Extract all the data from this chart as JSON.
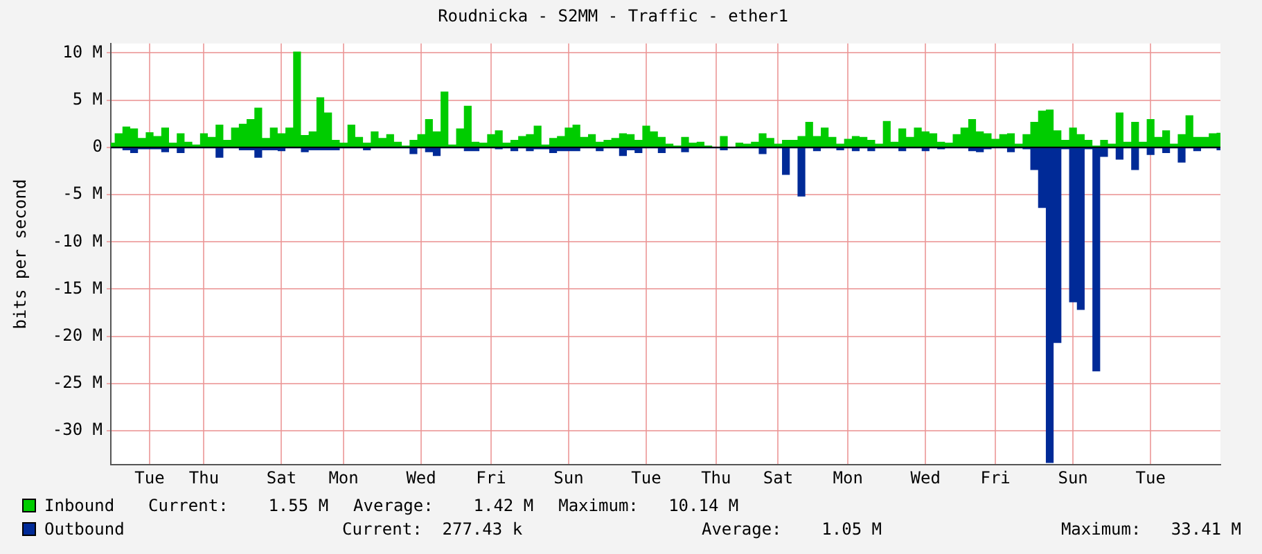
{
  "chart_data": {
    "type": "area",
    "title": "Roudnicka - S2MM - Traffic - ether1",
    "ylabel": "bits per second",
    "categories": [
      null,
      null,
      null,
      null,
      null,
      "Tue",
      null,
      null,
      null,
      null,
      null,
      null,
      "Thu",
      null,
      null,
      null,
      null,
      null,
      null,
      null,
      null,
      null,
      "Sat",
      null,
      null,
      null,
      null,
      null,
      null,
      null,
      "Mon",
      null,
      null,
      null,
      null,
      null,
      null,
      null,
      null,
      null,
      "Wed",
      null,
      null,
      null,
      null,
      null,
      null,
      null,
      null,
      "Fri",
      null,
      null,
      null,
      null,
      null,
      null,
      null,
      null,
      null,
      "Sun",
      null,
      null,
      null,
      null,
      null,
      null,
      null,
      null,
      null,
      "Tue",
      null,
      null,
      null,
      null,
      null,
      null,
      null,
      null,
      "Thu",
      null,
      null,
      null,
      null,
      null,
      null,
      null,
      "Sat",
      null,
      null,
      null,
      null,
      null,
      null,
      null,
      null,
      "Mon",
      null,
      null,
      null,
      null,
      null,
      null,
      null,
      null,
      null,
      "Wed",
      null,
      null,
      null,
      null,
      null,
      null,
      null,
      null,
      "Fri",
      null,
      null,
      null,
      null,
      null,
      null,
      null,
      null,
      null,
      "Sun",
      null,
      null,
      null,
      null,
      null,
      null,
      null,
      null,
      null,
      "Tue",
      null,
      null,
      null,
      null,
      null,
      null,
      null,
      null,
      null
    ],
    "series": [
      {
        "name": "Inbound",
        "color": "#00cc00",
        "values": [
          0.5,
          1.5,
          2.2,
          2.0,
          1.0,
          1.6,
          1.2,
          2.1,
          0.5,
          1.5,
          0.6,
          0.3,
          1.5,
          1.1,
          2.4,
          0.8,
          2.1,
          2.5,
          3.0,
          4.2,
          1.0,
          2.1,
          1.5,
          2.1,
          10.14,
          1.3,
          1.7,
          5.3,
          3.7,
          0.8,
          0.5,
          2.4,
          1.1,
          0.5,
          1.7,
          1.0,
          1.4,
          0.6,
          0.2,
          0.8,
          1.4,
          3.0,
          1.7,
          5.9,
          0.3,
          2.0,
          4.4,
          0.6,
          0.5,
          1.4,
          1.8,
          0.5,
          0.8,
          1.2,
          1.4,
          2.3,
          0.3,
          1.0,
          1.2,
          2.1,
          2.4,
          1.1,
          1.4,
          0.6,
          0.8,
          1.0,
          1.5,
          1.4,
          0.8,
          2.3,
          1.7,
          1.1,
          0.4,
          0.2,
          1.1,
          0.5,
          0.6,
          0.2,
          0,
          1.2,
          0,
          0.5,
          0.4,
          0.6,
          1.5,
          1.0,
          0.4,
          0.8,
          0.8,
          1.2,
          2.7,
          1.2,
          2.1,
          1.1,
          0.4,
          0.9,
          1.2,
          1.1,
          0.8,
          0.4,
          2.8,
          0.6,
          2.0,
          1.1,
          2.1,
          1.7,
          1.5,
          0.6,
          0.5,
          1.4,
          2.1,
          3.0,
          1.7,
          1.5,
          0.9,
          1.4,
          1.5,
          0.4,
          1.4,
          2.7,
          3.9,
          4.0,
          1.8,
          0.8,
          2.1,
          1.4,
          0.8,
          0.2,
          0.8,
          0.4,
          3.7,
          0.6,
          2.7,
          0.6,
          3.0,
          1.1,
          1.8,
          0.4,
          1.4,
          3.4,
          1.1,
          1.1,
          1.5,
          1.55
        ]
      },
      {
        "name": "Outbound",
        "color": "#002a97",
        "values": [
          -0.1,
          -0.1,
          -0.3,
          -0.6,
          -0.2,
          -0.2,
          -0.2,
          -0.5,
          -0.1,
          -0.6,
          -0.1,
          -0.1,
          -0.1,
          -0.1,
          -1.1,
          -0.1,
          -0.1,
          -0.3,
          -0.3,
          -1.1,
          -0.3,
          -0.3,
          -0.4,
          -0.1,
          -0.1,
          -0.5,
          -0.3,
          -0.3,
          -0.3,
          -0.3,
          -0.1,
          -0.1,
          -0.1,
          -0.3,
          -0.1,
          -0.1,
          -0.1,
          -0.1,
          -0.1,
          -0.7,
          -0.1,
          -0.5,
          -0.9,
          -0.1,
          -0.1,
          -0.1,
          -0.4,
          -0.4,
          -0.1,
          -0.1,
          -0.2,
          -0.1,
          -0.4,
          -0.1,
          -0.4,
          -0.2,
          -0.2,
          -0.6,
          -0.4,
          -0.4,
          -0.4,
          -0.1,
          -0.1,
          -0.4,
          -0.1,
          -0.1,
          -0.9,
          -0.3,
          -0.6,
          -0.1,
          -0.1,
          -0.6,
          -0.1,
          -0.1,
          -0.5,
          -0.1,
          -0.1,
          -0.1,
          -0.1,
          -0.3,
          -0.1,
          -0.1,
          -0.1,
          -0.1,
          -0.7,
          -0.1,
          -0.1,
          -2.9,
          -0.1,
          -5.2,
          -0.1,
          -0.4,
          -0.1,
          -0.1,
          -0.3,
          -0.1,
          -0.4,
          -0.1,
          -0.4,
          -0.1,
          -0.1,
          -0.1,
          -0.4,
          -0.1,
          -0.1,
          -0.4,
          -0.1,
          -0.2,
          -0.1,
          -0.1,
          -0.1,
          -0.4,
          -0.5,
          -0.2,
          -0.1,
          -0.1,
          -0.5,
          -0.1,
          -0.2,
          -2.4,
          -6.4,
          -33.41,
          -20.7,
          -0.2,
          -16.4,
          -17.2,
          -0.2,
          -23.7,
          -1.0,
          -0.1,
          -1.3,
          -0.1,
          -2.4,
          -0.1,
          -0.8,
          -0.1,
          -0.6,
          -0.1,
          -1.6,
          -0.1,
          -0.4,
          -0.1,
          -0.1,
          -0.3
        ]
      }
    ],
    "ylim": [
      -33.6,
      11
    ],
    "yticks": [
      {
        "value": 10,
        "label": "10 M"
      },
      {
        "value": 5,
        "label": "5 M"
      },
      0,
      {
        "value": -5,
        "label": "-5 M"
      },
      {
        "value": -10,
        "label": "-10 M"
      },
      {
        "value": -15,
        "label": "-15 M"
      },
      {
        "value": -20,
        "label": "-20 M"
      },
      {
        "value": -25,
        "label": "-25 M"
      },
      {
        "value": -30,
        "label": "-30 M"
      }
    ],
    "grid": true,
    "legend": "bottom",
    "annotations": [
      "Current:    1.55 M",
      "Average:    1.42 M",
      "Maximum:   10.14 M",
      "Current:  277.43 k",
      "Average:    1.05 M",
      "Maximum:   33.41 M"
    ]
  }
}
